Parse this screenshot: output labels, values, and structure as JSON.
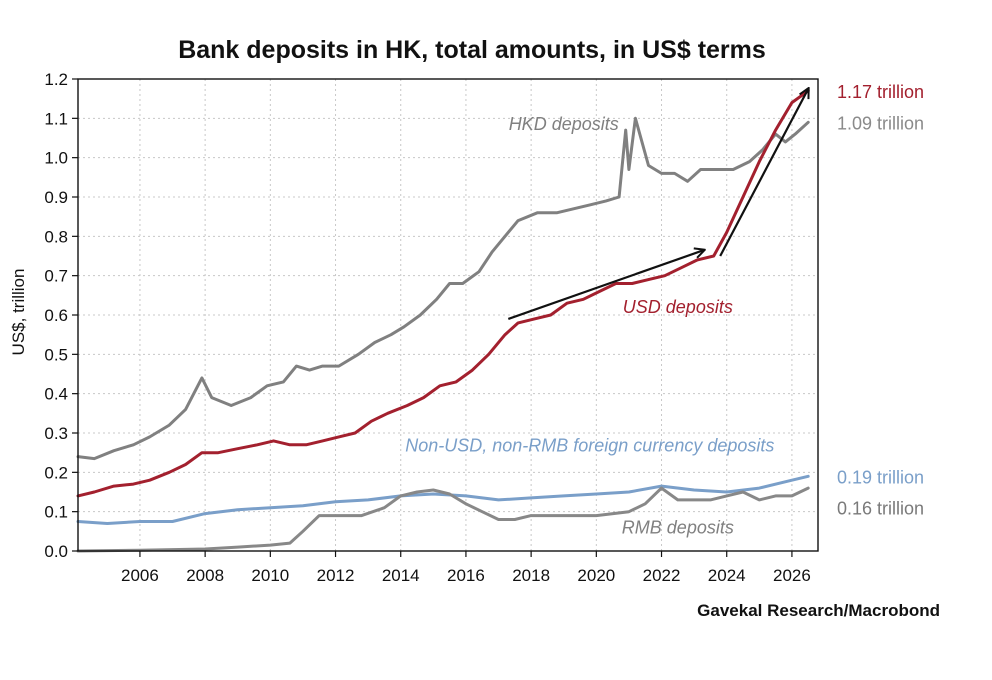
{
  "chart_data": {
    "type": "line",
    "title": "Bank deposits in HK, total amounts, in US$ terms",
    "ylabel": "US$, trillion",
    "xlabel": "",
    "source": "Gavekal Research/Macrobond",
    "xlim": [
      2004.1,
      2026.8
    ],
    "ylim": [
      0,
      1.2
    ],
    "x_ticks": [
      2006,
      2008,
      2010,
      2012,
      2014,
      2016,
      2018,
      2020,
      2022,
      2024,
      2026
    ],
    "x_tick_labels": [
      "2006",
      "2008",
      "2010",
      "2012",
      "2014",
      "2016",
      "2018",
      "2020",
      "2022",
      "2024",
      "2026"
    ],
    "y_ticks": [
      0,
      0.1,
      0.2,
      0.3,
      0.4,
      0.5,
      0.6,
      0.7,
      0.8,
      0.9,
      1.0,
      1.1,
      1.2
    ],
    "y_tick_labels": [
      "0.0",
      "0.1",
      "0.2",
      "0.3",
      "0.4",
      "0.5",
      "0.6",
      "0.7",
      "0.8",
      "0.9",
      "1.0",
      "1.1",
      "1.2"
    ],
    "grid": true,
    "series": [
      {
        "name": "HKD deposits",
        "color": "#808080",
        "x": [
          2004.1,
          2004.6,
          2005.2,
          2005.8,
          2006.3,
          2006.9,
          2007.4,
          2007.9,
          2008.2,
          2008.8,
          2009.4,
          2009.9,
          2010.4,
          2010.8,
          2011.2,
          2011.6,
          2012.1,
          2012.7,
          2013.2,
          2013.7,
          2014.1,
          2014.6,
          2015.1,
          2015.5,
          2015.9,
          2016.4,
          2016.8,
          2017.2,
          2017.6,
          2018.2,
          2018.8,
          2019.3,
          2019.8,
          2020.3,
          2020.7,
          2020.9,
          2021.0,
          2021.2,
          2021.6,
          2022.0,
          2022.4,
          2022.8,
          2023.2,
          2023.7,
          2024.2,
          2024.7,
          2025.1,
          2025.5,
          2025.8,
          2026.1,
          2026.5
        ],
        "values": [
          0.24,
          0.235,
          0.255,
          0.27,
          0.29,
          0.32,
          0.36,
          0.44,
          0.39,
          0.37,
          0.39,
          0.42,
          0.43,
          0.47,
          0.46,
          0.47,
          0.47,
          0.5,
          0.53,
          0.55,
          0.57,
          0.6,
          0.64,
          0.68,
          0.68,
          0.71,
          0.76,
          0.8,
          0.84,
          0.86,
          0.86,
          0.87,
          0.88,
          0.89,
          0.9,
          1.07,
          0.97,
          1.1,
          0.98,
          0.96,
          0.96,
          0.94,
          0.97,
          0.97,
          0.97,
          0.99,
          1.02,
          1.06,
          1.04,
          1.06,
          1.09
        ]
      },
      {
        "name": "USD deposits",
        "color": "#a3202e",
        "x": [
          2004.1,
          2004.6,
          2005.2,
          2005.8,
          2006.3,
          2006.9,
          2007.4,
          2007.9,
          2008.4,
          2009.0,
          2009.6,
          2010.1,
          2010.6,
          2011.1,
          2011.6,
          2012.1,
          2012.6,
          2013.1,
          2013.6,
          2014.2,
          2014.7,
          2015.2,
          2015.7,
          2016.2,
          2016.7,
          2017.2,
          2017.6,
          2018.1,
          2018.6,
          2019.1,
          2019.6,
          2020.1,
          2020.6,
          2021.1,
          2021.6,
          2022.1,
          2022.6,
          2023.1,
          2023.6,
          2024.0,
          2024.5,
          2025.0,
          2025.5,
          2026.0,
          2026.5
        ],
        "values": [
          0.14,
          0.15,
          0.165,
          0.17,
          0.18,
          0.2,
          0.22,
          0.25,
          0.25,
          0.26,
          0.27,
          0.28,
          0.27,
          0.27,
          0.28,
          0.29,
          0.3,
          0.33,
          0.35,
          0.37,
          0.39,
          0.42,
          0.43,
          0.46,
          0.5,
          0.55,
          0.58,
          0.59,
          0.6,
          0.63,
          0.64,
          0.66,
          0.68,
          0.68,
          0.69,
          0.7,
          0.72,
          0.74,
          0.75,
          0.81,
          0.9,
          0.99,
          1.07,
          1.14,
          1.17
        ]
      },
      {
        "name": "Non-USD, non-RMB foreign currency deposits",
        "color": "#7a9fc9",
        "x": [
          2004.1,
          2005.0,
          2006.0,
          2007.0,
          2008.0,
          2009.0,
          2010.0,
          2011.0,
          2012.0,
          2013.0,
          2014.0,
          2015.0,
          2016.0,
          2017.0,
          2018.0,
          2019.0,
          2020.0,
          2021.0,
          2022.0,
          2023.0,
          2024.0,
          2025.0,
          2026.0,
          2026.5
        ],
        "values": [
          0.075,
          0.07,
          0.075,
          0.075,
          0.095,
          0.105,
          0.11,
          0.115,
          0.125,
          0.13,
          0.14,
          0.145,
          0.14,
          0.13,
          0.135,
          0.14,
          0.145,
          0.15,
          0.165,
          0.155,
          0.15,
          0.16,
          0.18,
          0.19
        ]
      },
      {
        "name": "RMB deposits",
        "color": "#888888",
        "x": [
          2004.1,
          2006.0,
          2008.0,
          2009.0,
          2010.0,
          2010.6,
          2011.0,
          2011.5,
          2012.0,
          2012.8,
          2013.5,
          2014.0,
          2014.5,
          2015.0,
          2015.5,
          2016.0,
          2016.5,
          2017.0,
          2017.5,
          2018.0,
          2019.0,
          2020.0,
          2021.0,
          2021.5,
          2022.0,
          2022.5,
          2023.0,
          2023.5,
          2024.0,
          2024.5,
          2025.0,
          2025.5,
          2026.0,
          2026.5
        ],
        "values": [
          0.0,
          0.002,
          0.005,
          0.01,
          0.015,
          0.02,
          0.05,
          0.09,
          0.09,
          0.09,
          0.11,
          0.14,
          0.15,
          0.155,
          0.145,
          0.12,
          0.1,
          0.08,
          0.08,
          0.09,
          0.09,
          0.09,
          0.1,
          0.12,
          0.16,
          0.13,
          0.13,
          0.13,
          0.14,
          0.15,
          0.13,
          0.14,
          0.14,
          0.16
        ]
      }
    ],
    "series_labels": [
      {
        "text": "HKD deposits",
        "color": "#808080",
        "x": 2019.0,
        "y": 1.07
      },
      {
        "text": "USD deposits",
        "color": "#a3202e",
        "x": 2022.5,
        "y": 0.605
      },
      {
        "text": "Non-USD, non-RMB foreign currency deposits",
        "color": "#7a9fc9",
        "x": 2019.8,
        "y": 0.253
      },
      {
        "text": "RMB deposits",
        "color": "#808080",
        "x": 2022.5,
        "y": 0.045
      }
    ],
    "end_labels": [
      {
        "text": "1.17 trillion",
        "color": "#a3202e",
        "y": 1.17
      },
      {
        "text": "1.09 trillion",
        "color": "#8a8a8a",
        "y": 1.09
      },
      {
        "text": "0.19 trillion",
        "color": "#7a9fc9",
        "y": 0.19
      },
      {
        "text": "0.16 trillion",
        "color": "#7a7a7a",
        "y": 0.11
      }
    ],
    "annotations": [
      {
        "type": "arrow",
        "from": [
          2017.3,
          0.59
        ],
        "to": [
          2023.3,
          0.765
        ],
        "color": "#111111"
      },
      {
        "type": "arrow",
        "from": [
          2023.8,
          0.75
        ],
        "to": [
          2026.5,
          1.175
        ],
        "color": "#111111"
      }
    ]
  }
}
